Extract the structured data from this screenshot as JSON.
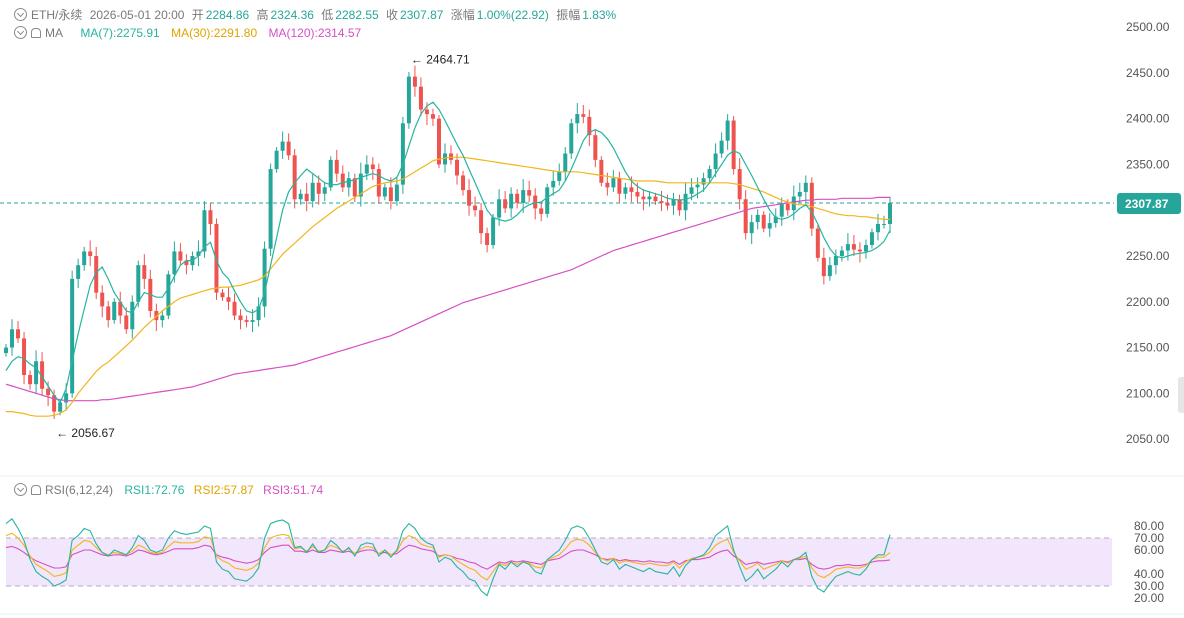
{
  "header": {
    "symbol": "ETH/永续",
    "timestamp": "2026-05-01 20:00",
    "open_label": "开",
    "open": "2284.86",
    "high_label": "高",
    "high": "2324.36",
    "low_label": "低",
    "low": "2282.55",
    "close_label": "收",
    "close": "2307.87",
    "change_label": "涨幅",
    "change": "1.00%(22.92)",
    "amplitude_label": "振幅",
    "amplitude": "1.83%"
  },
  "ma_legend": {
    "name": "MA",
    "ma7": "MA(7):2275.91",
    "ma30": "MA(30):2291.80",
    "ma120": "MA(120):2314.57"
  },
  "rsi_legend": {
    "name": "RSI(6,12,24)",
    "rsi1": "RSI1:72.76",
    "rsi2": "RSI2:57.87",
    "rsi3": "RSI3:51.74"
  },
  "colors": {
    "up": "#26a69a",
    "down": "#ef5350",
    "ma7": "#26b5a0",
    "ma30": "#f2b51c",
    "ma120": "#d74fc4",
    "rsi1": "#26b5a0",
    "rsi2": "#f2b51c",
    "rsi3": "#d74fc4",
    "rsi_band": "#f1e6fb",
    "last_price_bg": "#26a69a"
  },
  "chart_data": [
    {
      "type": "candlestick",
      "ylim": [
        2025,
        2510
      ],
      "y_ticks": [
        "2500.00",
        "2450.00",
        "2400.00",
        "2350.00",
        "2300.00",
        "2250.00",
        "2200.00",
        "2150.00",
        "2100.00",
        "2050.00"
      ],
      "tick_values": [
        2500,
        2450,
        2400,
        2350,
        2300,
        2250,
        2200,
        2150,
        2100,
        2050
      ],
      "last_price": 2307.87,
      "last_price_label": "2307.87",
      "annotations": [
        {
          "text": "2464.71",
          "value": 2464.71,
          "index": 67
        },
        {
          "text": "2056.67",
          "value": 2056.67,
          "index": 8
        }
      ],
      "close": [
        2150,
        2170,
        2160,
        2120,
        2110,
        2135,
        2105,
        2098,
        2080,
        2090,
        2100,
        2225,
        2240,
        2255,
        2250,
        2210,
        2195,
        2180,
        2200,
        2185,
        2170,
        2200,
        2240,
        2225,
        2190,
        2180,
        2185,
        2230,
        2255,
        2245,
        2240,
        2250,
        2255,
        2300,
        2285,
        2210,
        2205,
        2200,
        2185,
        2180,
        2178,
        2180,
        2195,
        2258,
        2345,
        2365,
        2375,
        2360,
        2312,
        2318,
        2310,
        2330,
        2318,
        2325,
        2355,
        2340,
        2325,
        2335,
        2315,
        2340,
        2350,
        2345,
        2315,
        2325,
        2310,
        2328,
        2395,
        2446,
        2435,
        2410,
        2405,
        2400,
        2350,
        2362,
        2355,
        2338,
        2322,
        2305,
        2300,
        2275,
        2262,
        2292,
        2312,
        2302,
        2318,
        2308,
        2322,
        2316,
        2302,
        2296,
        2325,
        2332,
        2342,
        2362,
        2395,
        2405,
        2402,
        2382,
        2355,
        2330,
        2325,
        2335,
        2318,
        2325,
        2320,
        2315,
        2312,
        2315,
        2310,
        2308,
        2305,
        2312,
        2300,
        2318,
        2325,
        2328,
        2335,
        2345,
        2362,
        2376,
        2398,
        2345,
        2312,
        2275,
        2287,
        2295,
        2280,
        2286,
        2293,
        2307,
        2300,
        2315,
        2320,
        2330,
        2280,
        2248,
        2228,
        2240,
        2250,
        2256,
        2263,
        2257,
        2255,
        2262,
        2276,
        2285,
        2285,
        2307.87
      ],
      "ma7": [
        2125,
        2135,
        2140,
        2138,
        2132,
        2128,
        2118,
        2108,
        2098,
        2090,
        2105,
        2135,
        2165,
        2192,
        2218,
        2232,
        2238,
        2225,
        2210,
        2200,
        2190,
        2188,
        2200,
        2210,
        2208,
        2205,
        2205,
        2215,
        2228,
        2240,
        2245,
        2245,
        2250,
        2260,
        2265,
        2245,
        2232,
        2225,
        2212,
        2200,
        2190,
        2188,
        2192,
        2210,
        2240,
        2270,
        2300,
        2320,
        2330,
        2338,
        2345,
        2340,
        2335,
        2330,
        2328,
        2328,
        2330,
        2332,
        2333,
        2336,
        2338,
        2340,
        2338,
        2334,
        2332,
        2336,
        2350,
        2370,
        2390,
        2405,
        2414,
        2418,
        2410,
        2398,
        2385,
        2372,
        2360,
        2345,
        2330,
        2315,
        2300,
        2292,
        2290,
        2288,
        2290,
        2295,
        2302,
        2306,
        2308,
        2309,
        2314,
        2318,
        2322,
        2332,
        2345,
        2360,
        2376,
        2385,
        2388,
        2385,
        2378,
        2368,
        2355,
        2342,
        2332,
        2326,
        2322,
        2320,
        2318,
        2316,
        2313,
        2312,
        2311,
        2312,
        2314,
        2318,
        2322,
        2330,
        2340,
        2350,
        2360,
        2365,
        2362,
        2350,
        2338,
        2325,
        2312,
        2300,
        2292,
        2290,
        2292,
        2296,
        2302,
        2306,
        2298,
        2285,
        2270,
        2258,
        2250,
        2248,
        2250,
        2252,
        2253,
        2254,
        2256,
        2260,
        2266,
        2278
      ],
      "ma30": [
        2080,
        2080,
        2079,
        2078,
        2076,
        2075,
        2075,
        2075,
        2076,
        2078,
        2082,
        2090,
        2100,
        2108,
        2116,
        2124,
        2130,
        2134,
        2140,
        2146,
        2152,
        2158,
        2165,
        2172,
        2178,
        2184,
        2190,
        2195,
        2200,
        2204,
        2206,
        2208,
        2210,
        2212,
        2214,
        2215,
        2216,
        2216,
        2217,
        2218,
        2220,
        2222,
        2224,
        2228,
        2236,
        2244,
        2252,
        2258,
        2264,
        2270,
        2276,
        2282,
        2287,
        2292,
        2297,
        2302,
        2306,
        2310,
        2314,
        2318,
        2322,
        2326,
        2328,
        2330,
        2331,
        2332,
        2334,
        2338,
        2342,
        2346,
        2350,
        2354,
        2356,
        2357,
        2358,
        2358,
        2358,
        2357,
        2356,
        2355,
        2354,
        2353,
        2352,
        2351,
        2350,
        2349,
        2348,
        2347,
        2346,
        2345,
        2344,
        2343,
        2342,
        2342,
        2342,
        2342,
        2341,
        2340,
        2339,
        2338,
        2337,
        2336,
        2335,
        2334,
        2333,
        2332,
        2332,
        2332,
        2332,
        2331,
        2330,
        2330,
        2330,
        2330,
        2330,
        2330,
        2330,
        2330,
        2330,
        2330,
        2330,
        2329,
        2328,
        2326,
        2324,
        2322,
        2320,
        2317,
        2314,
        2311,
        2309,
        2307,
        2306,
        2306,
        2304,
        2302,
        2300,
        2298,
        2296,
        2295,
        2294,
        2294,
        2293,
        2293,
        2292,
        2291,
        2290,
        2290
      ],
      "ma120": [
        2110,
        2108,
        2106,
        2104,
        2102,
        2100,
        2098,
        2096,
        2094,
        2093,
        2092,
        2092,
        2092,
        2092,
        2092,
        2092,
        2093,
        2093,
        2094,
        2095,
        2096,
        2097,
        2098,
        2099,
        2100,
        2101,
        2102,
        2103,
        2104,
        2105,
        2106,
        2107,
        2109,
        2111,
        2113,
        2115,
        2117,
        2119,
        2121,
        2122,
        2123,
        2124,
        2125,
        2126,
        2127,
        2128,
        2129,
        2130,
        2131,
        2133,
        2135,
        2137,
        2139,
        2141,
        2143,
        2145,
        2147,
        2149,
        2151,
        2153,
        2155,
        2157,
        2159,
        2161,
        2163,
        2166,
        2169,
        2172,
        2175,
        2178,
        2181,
        2184,
        2187,
        2190,
        2193,
        2196,
        2199,
        2201,
        2203,
        2205,
        2207,
        2209,
        2211,
        2213,
        2215,
        2217,
        2219,
        2221,
        2223,
        2225,
        2227,
        2229,
        2231,
        2233,
        2235,
        2238,
        2241,
        2244,
        2247,
        2250,
        2253,
        2256,
        2258,
        2260,
        2262,
        2264,
        2266,
        2268,
        2270,
        2272,
        2274,
        2276,
        2278,
        2280,
        2282,
        2284,
        2286,
        2288,
        2290,
        2292,
        2294,
        2296,
        2298,
        2300,
        2302,
        2303,
        2304,
        2305,
        2306,
        2307,
        2308,
        2309,
        2310,
        2311,
        2311,
        2312,
        2312,
        2312,
        2312,
        2313,
        2313,
        2313,
        2313,
        2313,
        2313,
        2314,
        2314,
        2314
      ]
    },
    {
      "type": "line",
      "ylim": [
        15,
        90
      ],
      "y_ticks": [
        "80.00",
        "70.00",
        "60.00",
        "40.00",
        "30.00",
        "20.00"
      ],
      "tick_values": [
        80,
        70,
        60,
        40,
        30,
        20
      ],
      "band": [
        30,
        70
      ],
      "series": [
        {
          "name": "RSI1",
          "values": [
            82,
            86,
            78,
            68,
            52,
            42,
            38,
            35,
            30,
            32,
            35,
            68,
            72,
            78,
            76,
            65,
            58,
            55,
            60,
            58,
            56,
            62,
            72,
            68,
            60,
            58,
            60,
            70,
            76,
            74,
            73,
            74,
            75,
            80,
            78,
            50,
            44,
            42,
            36,
            35,
            34,
            38,
            45,
            70,
            82,
            84,
            85,
            82,
            62,
            63,
            58,
            65,
            58,
            60,
            68,
            64,
            58,
            62,
            55,
            64,
            66,
            65,
            55,
            60,
            54,
            60,
            76,
            82,
            78,
            70,
            66,
            64,
            50,
            54,
            52,
            46,
            42,
            36,
            34,
            26,
            22,
            36,
            48,
            44,
            50,
            46,
            50,
            48,
            42,
            40,
            52,
            56,
            60,
            68,
            78,
            80,
            78,
            70,
            60,
            50,
            48,
            52,
            44,
            48,
            46,
            44,
            42,
            45,
            42,
            41,
            40,
            46,
            38,
            47,
            52,
            54,
            56,
            62,
            72,
            76,
            80,
            60,
            46,
            34,
            38,
            44,
            36,
            40,
            44,
            50,
            46,
            52,
            54,
            58,
            38,
            28,
            25,
            32,
            38,
            40,
            42,
            40,
            39,
            44,
            52,
            56,
            56,
            72.76
          ]
        },
        {
          "name": "RSI2",
          "values": [
            72,
            74,
            70,
            64,
            55,
            48,
            45,
            42,
            38,
            39,
            41,
            60,
            64,
            68,
            67,
            62,
            58,
            56,
            58,
            57,
            56,
            59,
            64,
            62,
            58,
            57,
            58,
            63,
            67,
            66,
            66,
            66,
            67,
            71,
            70,
            55,
            51,
            49,
            45,
            44,
            43,
            45,
            49,
            62,
            70,
            72,
            73,
            72,
            61,
            62,
            59,
            63,
            59,
            60,
            64,
            62,
            59,
            61,
            57,
            61,
            63,
            62,
            57,
            60,
            56,
            59,
            68,
            72,
            70,
            65,
            63,
            62,
            54,
            56,
            55,
            51,
            48,
            45,
            43,
            38,
            35,
            42,
            49,
            47,
            50,
            48,
            50,
            49,
            46,
            45,
            51,
            54,
            56,
            61,
            67,
            69,
            68,
            64,
            58,
            53,
            51,
            53,
            49,
            51,
            50,
            49,
            48,
            49,
            48,
            47,
            47,
            50,
            45,
            50,
            53,
            54,
            55,
            58,
            64,
            67,
            69,
            58,
            51,
            44,
            46,
            49,
            44,
            46,
            48,
            51,
            49,
            52,
            53,
            55,
            45,
            39,
            37,
            40,
            44,
            45,
            46,
            45,
            45,
            47,
            52,
            54,
            54,
            57.87
          ]
        },
        {
          "name": "RSI3",
          "values": [
            62,
            63,
            61,
            58,
            54,
            51,
            49,
            47,
            45,
            45,
            46,
            56,
            58,
            60,
            60,
            58,
            56,
            55,
            56,
            56,
            55,
            57,
            60,
            59,
            57,
            56,
            57,
            59,
            61,
            61,
            61,
            61,
            62,
            64,
            63,
            56,
            54,
            53,
            51,
            50,
            49,
            50,
            52,
            58,
            62,
            63,
            64,
            64,
            59,
            59,
            58,
            60,
            58,
            58,
            60,
            59,
            58,
            59,
            57,
            59,
            60,
            60,
            57,
            58,
            56,
            57,
            61,
            64,
            63,
            61,
            60,
            59,
            55,
            56,
            55,
            53,
            52,
            50,
            49,
            46,
            44,
            47,
            50,
            49,
            51,
            50,
            51,
            50,
            49,
            48,
            51,
            52,
            53,
            56,
            59,
            60,
            60,
            58,
            56,
            53,
            52,
            53,
            51,
            52,
            51,
            51,
            50,
            51,
            50,
            50,
            49,
            51,
            48,
            51,
            52,
            52,
            53,
            54,
            57,
            59,
            60,
            55,
            52,
            48,
            49,
            50,
            48,
            49,
            50,
            51,
            50,
            52,
            52,
            53,
            48,
            45,
            44,
            45,
            47,
            47,
            48,
            47,
            47,
            48,
            50,
            51,
            51,
            51.74
          ]
        }
      ]
    }
  ]
}
